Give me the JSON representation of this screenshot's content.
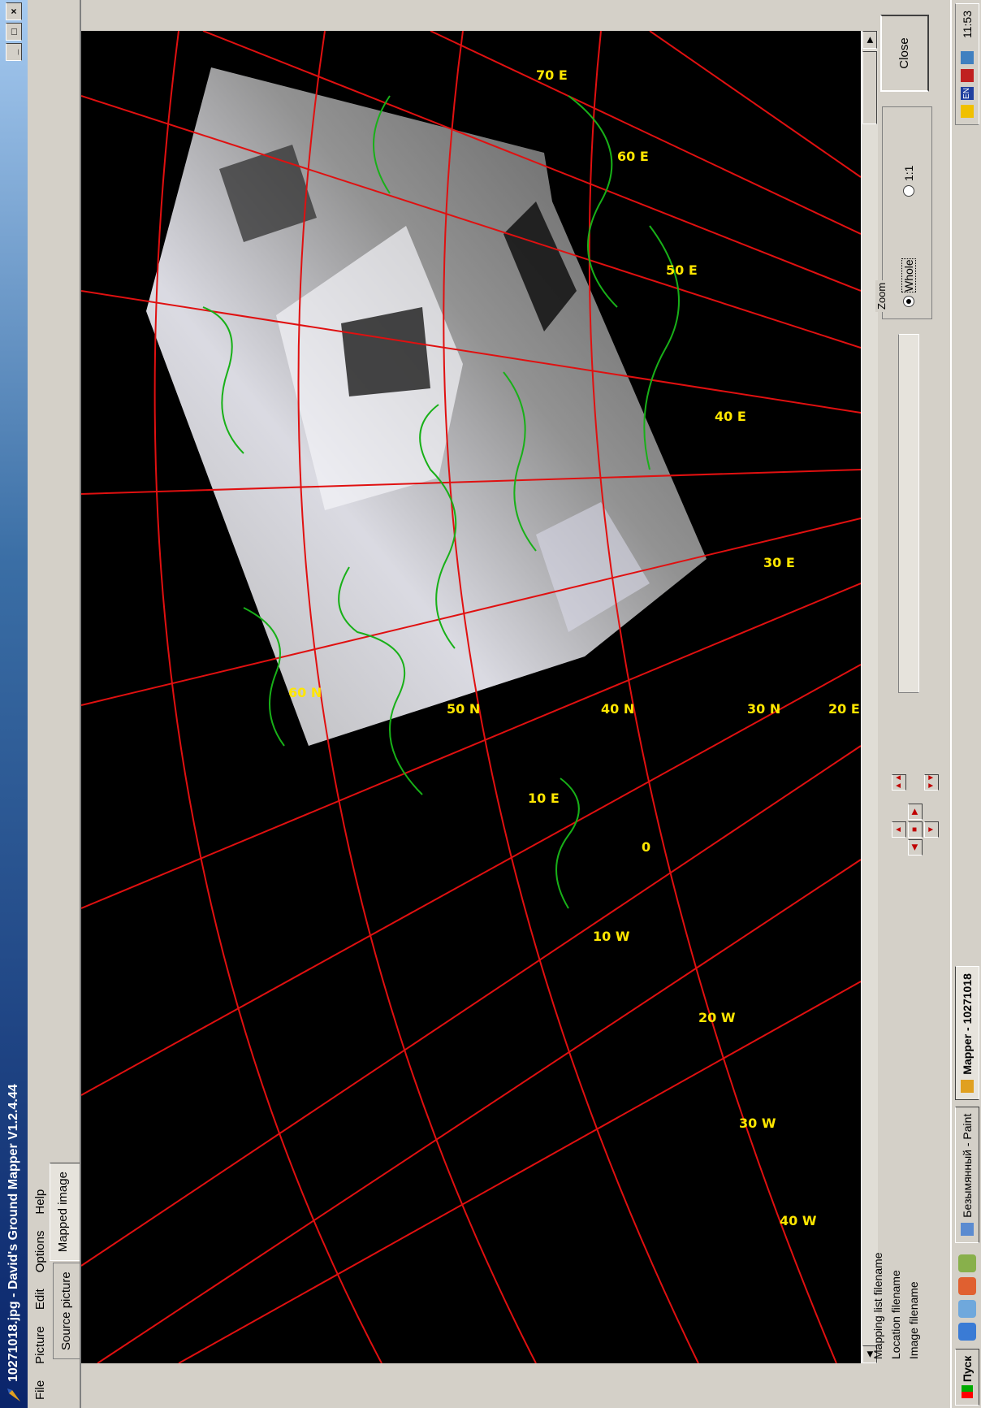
{
  "window": {
    "title": "10271018.jpg - David's Ground Mapper V1.2.4.44",
    "minimize": "_",
    "maximize": "□",
    "close": "×"
  },
  "menu": [
    "File",
    "Picture",
    "Edit",
    "Options",
    "Help"
  ],
  "tabs": [
    {
      "label": "Source picture",
      "active": false
    },
    {
      "label": "Mapped image",
      "active": true
    }
  ],
  "map": {
    "graticule_color": "#e01010",
    "coast_color": "#18b018",
    "label_color": "#ffe600",
    "longitude_labels": [
      "40 W",
      "30 W",
      "20 W",
      "10 W",
      "0",
      "10 E",
      "20 E",
      "30 E",
      "40 E",
      "50 E",
      "60 E",
      "70 E"
    ],
    "latitude_labels": [
      "60 N",
      "50 N",
      "40 N",
      "30 N"
    ]
  },
  "bottom": {
    "file_labels": [
      "Mapping list filename",
      "Location filename",
      "Image filename"
    ],
    "zoom_title": "Zoom",
    "zoom_whole": "Whole",
    "zoom_one": "1:1",
    "zoom_selected": "Whole",
    "close_label": "Close"
  },
  "taskbar": {
    "start": "Пуск",
    "items": [
      {
        "label": "Безымянный - Paint",
        "active": false
      },
      {
        "label": "Mapper - 10271018",
        "active": true
      }
    ],
    "tray_lang": "EN",
    "clock": "11:53"
  }
}
